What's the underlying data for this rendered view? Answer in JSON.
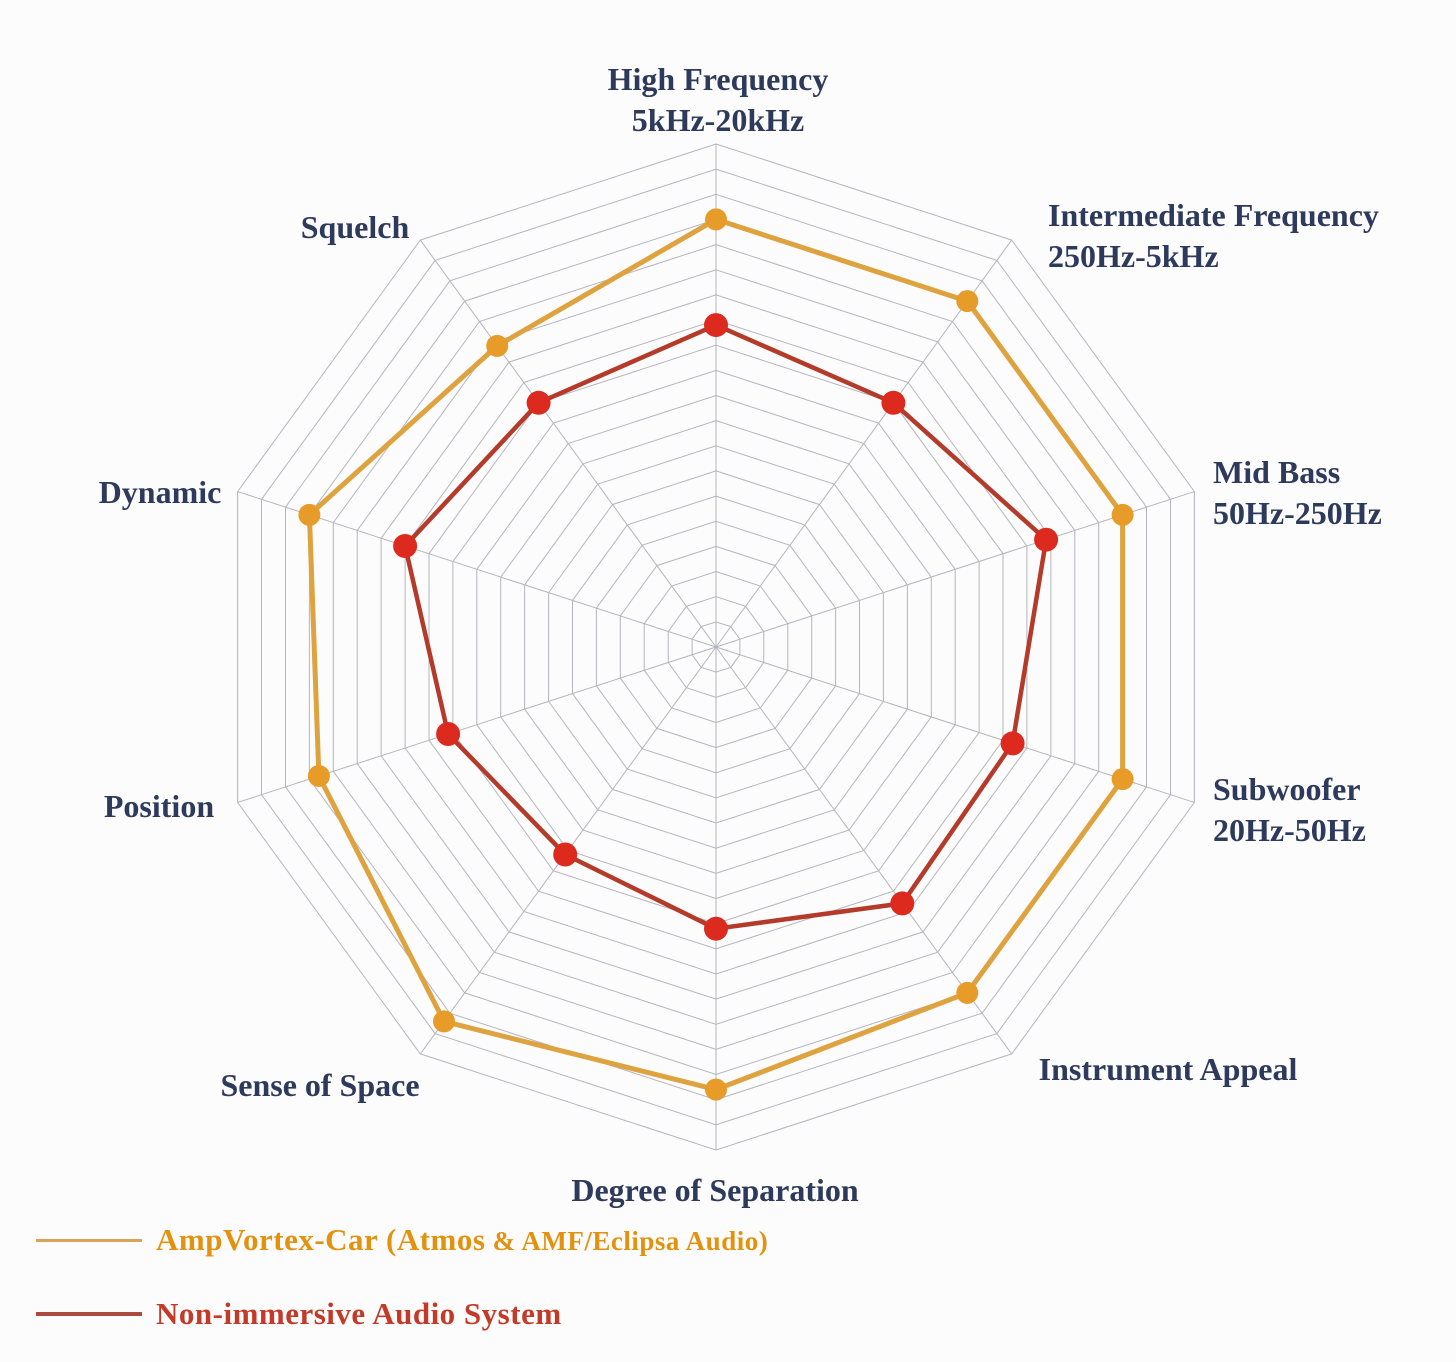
{
  "chart_data": {
    "type": "radar",
    "title": "",
    "scale": [
      0,
      10
    ],
    "rings": 20,
    "grid_color": "#b5b6bd",
    "axis_label_color": "#2e3a5c",
    "legend_position": "bottom-left",
    "categories": [
      {
        "label": "High Frequency",
        "sub": "5kHz-20kHz"
      },
      {
        "label": "Intermediate Frequency",
        "sub": "250Hz-5kHz"
      },
      {
        "label": "Mid Bass",
        "sub": "50Hz-250Hz"
      },
      {
        "label": "Subwoofer",
        "sub": "20Hz-50Hz"
      },
      {
        "label": "Instrument Appeal",
        "sub": ""
      },
      {
        "label": "Degree of Separation",
        "sub": ""
      },
      {
        "label": "Sense of Space",
        "sub": ""
      },
      {
        "label": "Position",
        "sub": ""
      },
      {
        "label": "Dynamic",
        "sub": ""
      },
      {
        "label": "Squelch",
        "sub": ""
      }
    ],
    "series": [
      {
        "name": "AmpVortex-Car (Atmos & AMF/Eclipsa Audio)",
        "line_color": "#DEA23F",
        "dot_color": "#E79C2A",
        "line_width": 5,
        "dot_radius": 11,
        "values": [
          8.5,
          8.5,
          8.5,
          8.5,
          8.5,
          8.8,
          9.2,
          8.3,
          8.5,
          7.4
        ]
      },
      {
        "name": "Non-immersive Audio System",
        "line_color": "#B43A2A",
        "dot_color": "#DC2B1E",
        "line_width": 4.5,
        "dot_radius": 12,
        "values": [
          6.4,
          6.0,
          6.9,
          6.2,
          6.3,
          5.6,
          5.1,
          5.6,
          6.5,
          6.0
        ]
      }
    ]
  },
  "legend": {
    "items": [
      {
        "label_main": "AmpVortex-Car (Atmos",
        "label_suffix": " & AMF/Eclipsa Audio)",
        "text_color": "#E2920F",
        "line_color": "#D8A45C",
        "line_thickness": "3px"
      },
      {
        "label_main": "Non-immersive Audio System",
        "label_suffix": "",
        "text_color": "#C33A28",
        "line_color": "#AD4A3E",
        "line_thickness": "4px"
      }
    ]
  }
}
